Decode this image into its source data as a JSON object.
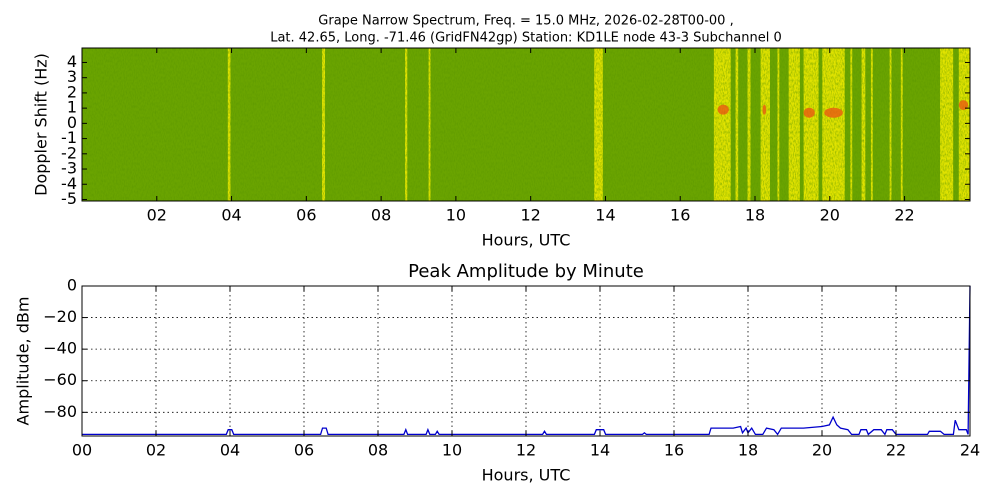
{
  "chart_data": [
    {
      "type": "spectrogram",
      "title": "Grape Narrow Spectrum, Freq. = 15.0 MHz, 2026-02-28T00-00 ,",
      "subtitle": "Lat.  42.65, Long. -71.46 (GridFN42gp) Station: KD1LE node 43-3 Subchannel 0",
      "x_label": "Hours, UTC",
      "y_label": "Doppler Shift (Hz)",
      "xlim": [
        0,
        23.75
      ],
      "ylim": [
        -5.1,
        4.95
      ],
      "xticks": [
        {
          "value": 2,
          "label": "02"
        },
        {
          "value": 4,
          "label": "04"
        },
        {
          "value": 6,
          "label": "06"
        },
        {
          "value": 8,
          "label": "08"
        },
        10,
        12,
        14,
        16,
        18,
        20,
        22
      ],
      "yticks": [
        -5,
        -4,
        -3,
        -2,
        -1,
        0,
        1,
        2,
        3,
        4
      ],
      "background_color": "#6aa400",
      "band_color": "#ece800",
      "patch_color": "#e85a10",
      "yellow_bands": [
        [
          3.9,
          3.97
        ],
        [
          6.42,
          6.5
        ],
        [
          8.64,
          8.7
        ],
        [
          9.27,
          9.32
        ],
        [
          13.7,
          13.93
        ],
        [
          16.9,
          17.35
        ],
        [
          17.48,
          17.55
        ],
        [
          17.8,
          17.88
        ],
        [
          18.15,
          18.4
        ],
        [
          18.6,
          18.65
        ],
        [
          18.9,
          19.2
        ],
        [
          19.3,
          19.7
        ],
        [
          19.8,
          20.4
        ],
        [
          20.55,
          20.6
        ],
        [
          20.85,
          20.95
        ],
        [
          21.1,
          21.15
        ],
        [
          21.6,
          21.65
        ],
        [
          21.9,
          21.95
        ],
        [
          22.95,
          23.3
        ],
        [
          23.45,
          23.75
        ]
      ],
      "red_patches": [
        [
          17.0,
          17.3,
          0.9
        ],
        [
          18.2,
          18.3,
          0.9
        ],
        [
          19.3,
          19.6,
          0.7
        ],
        [
          19.85,
          20.35,
          0.7
        ],
        [
          23.45,
          23.7,
          1.2
        ]
      ]
    },
    {
      "type": "line",
      "title": "Peak Amplitude by Minute",
      "x_label": "Hours, UTC",
      "y_label": "Amplitude, dBm",
      "xlim": [
        0,
        24
      ],
      "ylim": [
        -95,
        0
      ],
      "xticks": [
        {
          "value": 0,
          "label": "00"
        },
        {
          "value": 2,
          "label": "02"
        },
        {
          "value": 4,
          "label": "04"
        },
        {
          "value": 6,
          "label": "06"
        },
        {
          "value": 8,
          "label": "08"
        },
        10,
        12,
        14,
        16,
        18,
        20,
        22,
        24
      ],
      "yticks": [
        0,
        {
          "value": -20,
          "label": "−20"
        },
        {
          "value": -40,
          "label": "−40"
        },
        {
          "value": -60,
          "label": "−60"
        },
        {
          "value": -80,
          "label": "−80"
        }
      ],
      "grid": true,
      "color": "#0000cc",
      "x": [
        0,
        3.9,
        3.95,
        4.05,
        4.1,
        6.45,
        6.5,
        6.6,
        6.65,
        8.7,
        8.75,
        8.8,
        9.3,
        9.35,
        9.4,
        9.55,
        9.6,
        9.65,
        12.45,
        12.5,
        12.55,
        13.85,
        13.9,
        14.1,
        14.15,
        15.15,
        15.2,
        15.25,
        16.95,
        17.0,
        17.6,
        17.8,
        17.85,
        17.95,
        18.0,
        18.1,
        18.2,
        18.4,
        18.5,
        18.7,
        18.8,
        18.9,
        19.5,
        20.0,
        20.2,
        20.3,
        20.4,
        20.5,
        20.7,
        20.8,
        21.0,
        21.05,
        21.2,
        21.25,
        21.4,
        21.6,
        21.7,
        21.75,
        21.9,
        22.0,
        22.85,
        22.9,
        23.2,
        23.3,
        23.55,
        23.6,
        23.7,
        23.9,
        23.95,
        24.0
      ],
      "values": [
        -94,
        -94,
        -91,
        -91,
        -94,
        -94,
        -90,
        -90,
        -94,
        -94,
        -91,
        -94,
        -94,
        -91,
        -94,
        -94,
        -92,
        -94,
        -94,
        -92,
        -94,
        -94,
        -91,
        -91,
        -94,
        -94,
        -93,
        -94,
        -94,
        -90,
        -90,
        -89,
        -93,
        -90,
        -93,
        -90,
        -94,
        -94,
        -90,
        -91,
        -94,
        -90,
        -90,
        -89,
        -88,
        -83,
        -88,
        -90,
        -91,
        -94,
        -94,
        -91,
        -91,
        -94,
        -91,
        -91,
        -94,
        -91,
        -91,
        -94,
        -94,
        -92,
        -92,
        -94,
        -94,
        -85,
        -91,
        -91,
        -94,
        0
      ]
    }
  ]
}
